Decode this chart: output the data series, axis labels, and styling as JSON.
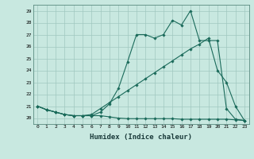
{
  "xlabel": "Humidex (Indice chaleur)",
  "background_color": "#c8e8e0",
  "grid_color": "#a0c8c0",
  "line_color": "#1a6a5a",
  "xlim": [
    -0.5,
    23.5
  ],
  "ylim": [
    19.5,
    29.5
  ],
  "xticks": [
    0,
    1,
    2,
    3,
    4,
    5,
    6,
    7,
    8,
    9,
    10,
    11,
    12,
    13,
    14,
    15,
    16,
    17,
    18,
    19,
    20,
    21,
    22,
    23
  ],
  "yticks": [
    20,
    21,
    22,
    23,
    24,
    25,
    26,
    27,
    28,
    29
  ],
  "line1_x": [
    0,
    1,
    2,
    3,
    4,
    5,
    6,
    7,
    8,
    9,
    10,
    11,
    12,
    13,
    14,
    15,
    16,
    17,
    18,
    19,
    20,
    21,
    22,
    23
  ],
  "line1_y": [
    21.0,
    20.7,
    20.5,
    20.3,
    20.2,
    20.2,
    20.2,
    20.5,
    21.2,
    22.5,
    24.7,
    27.0,
    27.0,
    26.7,
    27.0,
    28.2,
    27.8,
    29.0,
    26.5,
    26.5,
    26.5,
    20.8,
    19.9,
    19.8
  ],
  "line2_x": [
    0,
    1,
    2,
    3,
    4,
    5,
    6,
    7,
    8,
    9,
    10,
    11,
    12,
    13,
    14,
    15,
    16,
    17,
    18,
    19,
    20,
    21,
    22,
    23
  ],
  "line2_y": [
    21.0,
    20.7,
    20.5,
    20.3,
    20.2,
    20.2,
    20.3,
    20.8,
    21.3,
    21.8,
    22.3,
    22.8,
    23.3,
    23.8,
    24.3,
    24.8,
    25.3,
    25.8,
    26.2,
    26.7,
    24.0,
    23.0,
    21.0,
    19.8
  ],
  "line3_x": [
    0,
    1,
    2,
    3,
    4,
    5,
    6,
    7,
    8,
    9,
    10,
    11,
    12,
    13,
    14,
    15,
    16,
    17,
    18,
    19,
    20,
    21,
    22,
    23
  ],
  "line3_y": [
    21.0,
    20.7,
    20.5,
    20.3,
    20.2,
    20.2,
    20.2,
    20.2,
    20.1,
    20.0,
    19.95,
    19.95,
    19.95,
    19.95,
    19.95,
    19.95,
    19.9,
    19.9,
    19.9,
    19.9,
    19.9,
    19.9,
    19.85,
    19.8
  ]
}
